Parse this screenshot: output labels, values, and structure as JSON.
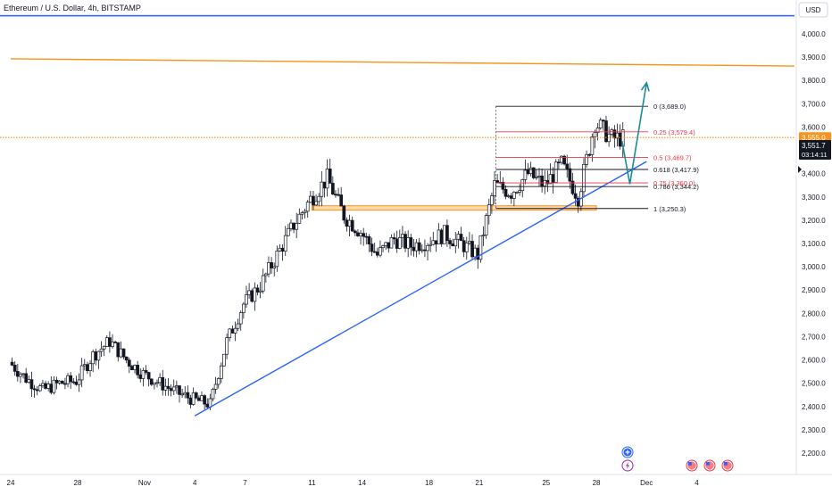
{
  "header": {
    "symbol_title": "Ethereum / U.S. Dollar, 4h, BITSTAMP",
    "currency_label": "USD"
  },
  "chart_data": {
    "type": "candlestick",
    "y_axis": {
      "min": 2150,
      "max": 4100,
      "ticks": [
        2200,
        2300,
        2400,
        2500,
        2600,
        2700,
        2800,
        2900,
        3000,
        3100,
        3200,
        3300,
        3400,
        3500,
        3600,
        3700,
        3800,
        3900,
        4000
      ]
    },
    "x_axis": {
      "start_date": "2024-10-24",
      "end_date": "2024-12-06",
      "ticks": [
        {
          "date": "2024-10-24",
          "label": "24"
        },
        {
          "date": "2024-10-28",
          "label": "28"
        },
        {
          "date": "2024-11-01",
          "label": "Nov"
        },
        {
          "date": "2024-11-04",
          "label": "4"
        },
        {
          "date": "2024-11-07",
          "label": "7"
        },
        {
          "date": "2024-11-11",
          "label": "11"
        },
        {
          "date": "2024-11-14",
          "label": "14"
        },
        {
          "date": "2024-11-18",
          "label": "18"
        },
        {
          "date": "2024-11-21",
          "label": "21"
        },
        {
          "date": "2024-11-25",
          "label": "25"
        },
        {
          "date": "2024-11-28",
          "label": "28"
        },
        {
          "date": "2024-12-01",
          "label": "Dec"
        },
        {
          "date": "2024-12-04",
          "label": "4"
        }
      ]
    },
    "price_path": [
      {
        "date": "2024-10-24",
        "price": 2590
      },
      {
        "date": "2024-10-25",
        "price": 2520
      },
      {
        "date": "2024-10-26",
        "price": 2470
      },
      {
        "date": "2024-10-27",
        "price": 2500
      },
      {
        "date": "2024-10-28",
        "price": 2510
      },
      {
        "date": "2024-10-29",
        "price": 2620
      },
      {
        "date": "2024-10-30",
        "price": 2680
      },
      {
        "date": "2024-10-31",
        "price": 2600
      },
      {
        "date": "2024-11-01",
        "price": 2540
      },
      {
        "date": "2024-11-02",
        "price": 2500
      },
      {
        "date": "2024-11-03",
        "price": 2460
      },
      {
        "date": "2024-11-04",
        "price": 2430
      },
      {
        "date": "2024-11-05",
        "price": 2410
      },
      {
        "date": "2024-11-06",
        "price": 2680
      },
      {
        "date": "2024-11-07",
        "price": 2840
      },
      {
        "date": "2024-11-08",
        "price": 2920
      },
      {
        "date": "2024-11-09",
        "price": 3050
      },
      {
        "date": "2024-11-10",
        "price": 3180
      },
      {
        "date": "2024-11-11",
        "price": 3290
      },
      {
        "date": "2024-11-12",
        "price": 3380
      },
      {
        "date": "2024-11-13",
        "price": 3220
      },
      {
        "date": "2024-11-14",
        "price": 3150
      },
      {
        "date": "2024-11-15",
        "price": 3050
      },
      {
        "date": "2024-11-16",
        "price": 3120
      },
      {
        "date": "2024-11-17",
        "price": 3090
      },
      {
        "date": "2024-11-18",
        "price": 3110
      },
      {
        "date": "2024-11-19",
        "price": 3140
      },
      {
        "date": "2024-11-20",
        "price": 3100
      },
      {
        "date": "2024-11-21",
        "price": 3050
      },
      {
        "date": "2024-11-22",
        "price": 3350
      },
      {
        "date": "2024-11-23",
        "price": 3320
      },
      {
        "date": "2024-11-24",
        "price": 3400
      },
      {
        "date": "2024-11-25",
        "price": 3350
      },
      {
        "date": "2024-11-26",
        "price": 3440
      },
      {
        "date": "2024-11-27",
        "price": 3300
      },
      {
        "date": "2024-11-28",
        "price": 3620
      },
      {
        "date": "2024-11-29",
        "price": 3551.7
      }
    ],
    "horizontal_lines": [
      {
        "price": 4078,
        "color": "#2962ff"
      },
      {
        "price": 3555,
        "color": "#f7931a",
        "dotted": true
      }
    ],
    "resistance_line": {
      "from": {
        "date": "2024-10-24",
        "price": 3893
      },
      "to": {
        "date": "2024-12-06",
        "price": 3862
      },
      "color": "#f7931a"
    },
    "trend_line": {
      "from": {
        "date": "2024-11-04",
        "price": 2360
      },
      "to": {
        "date": "2024-12-01",
        "price": 3452
      },
      "color": "#2962ff"
    },
    "support_zone": {
      "from_date": "2024-11-11",
      "to_date": "2024-11-28",
      "top": 3262,
      "bottom": 3243,
      "color": "#f7931a"
    },
    "projection": {
      "points": [
        {
          "date": "2024-11-29",
          "price": 3540
        },
        {
          "date": "2024-11-30",
          "price": 3355
        },
        {
          "date": "2024-12-01",
          "price": 3790
        }
      ],
      "color": "#1a8c99"
    },
    "fib_levels": [
      {
        "level": "0",
        "price": 3689.0,
        "label": "0 (3,689.0)",
        "color": "#131722"
      },
      {
        "level": "0.25",
        "price": 3579.4,
        "label": "0.25 (3,579.4)",
        "color": "#f23645"
      },
      {
        "level": "0.5",
        "price": 3469.7,
        "label": "0.5 (3,469.7)",
        "color": "#f23645"
      },
      {
        "level": "0.618",
        "price": 3417.9,
        "label": "0.618 (3,417.9)",
        "color": "#131722"
      },
      {
        "level": "0.75",
        "price": 3360.0,
        "label": "0.75 (3,360.0)",
        "color": "#f23645"
      },
      {
        "level": "0.786",
        "price": 3344.2,
        "label": "0.786 (3,344.2)",
        "color": "#131722"
      },
      {
        "level": "1",
        "price": 3250.3,
        "label": "1 (3,250.3)",
        "color": "#131722"
      }
    ],
    "price_labels": [
      {
        "text": "3,555.0",
        "price": 3555,
        "bg": "#f7931a",
        "fg": "#ffffff"
      },
      {
        "text": "3,551.7",
        "price": 3551.7,
        "bg": "#131722",
        "fg": "#ffffff",
        "sub": "03:14:11"
      }
    ]
  },
  "indicators": [
    {
      "icon": "plus-circle-icon",
      "color": "#2962ff"
    },
    {
      "icon": "lightning-icon",
      "color": "#9c27b0"
    },
    {
      "icon": "us-flag-icon",
      "color": "#f23645"
    },
    {
      "icon": "us-flag-icon",
      "color": "#f23645"
    },
    {
      "icon": "us-flag-icon",
      "color": "#f23645"
    }
  ]
}
